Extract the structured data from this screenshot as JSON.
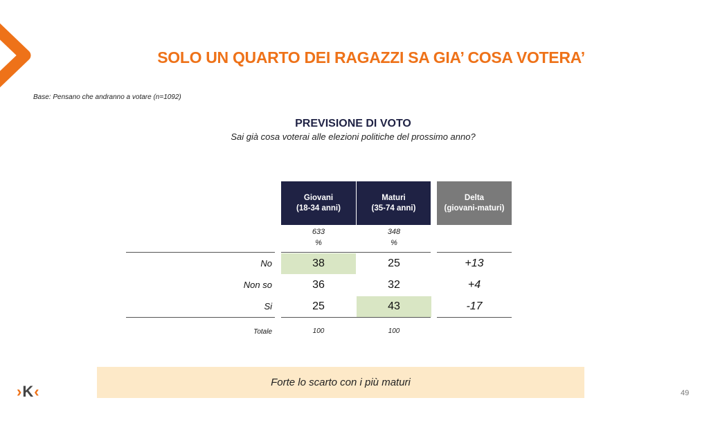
{
  "title": "SOLO UN QUARTO DEI RAGAZZI SA GIA’ COSA VOTERA’",
  "base": "Base: Pensano che andranno a votare (n=1092)",
  "section_title": "PREVISIONE DI VOTO",
  "question": "Sai già cosa voterai alle elezioni politiche del prossimo anno?",
  "table": {
    "columns": [
      {
        "label": "Giovani\n(18-34 anni)",
        "n": "633",
        "unit": "%"
      },
      {
        "label": "Maturi\n(35-74 anni)",
        "n": "348",
        "unit": "%"
      },
      {
        "label": "Delta\n(giovani-maturi)"
      }
    ],
    "rows": [
      {
        "label": "No",
        "values": [
          "38",
          "25",
          "+13"
        ],
        "highlight": 0
      },
      {
        "label": "Non so",
        "values": [
          "36",
          "32",
          "+4"
        ]
      },
      {
        "label": "Si",
        "values": [
          "25",
          "43",
          "-17"
        ],
        "highlight": 1
      }
    ],
    "total": {
      "label": "Totale",
      "values": [
        "100",
        "100"
      ]
    }
  },
  "note": "Forte lo scarto con i più maturi",
  "logo_text": "›K‹",
  "page_number": "49",
  "colors": {
    "accent": "#ee7219",
    "navy": "#1f2244",
    "highlight": "#d9e6c4",
    "note_bg": "#fde9c8"
  }
}
